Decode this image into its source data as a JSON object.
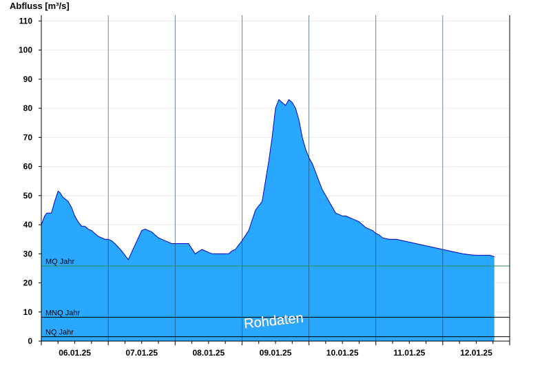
{
  "chart_data": {
    "type": "area",
    "ylabel": "Abfluss [m³/s]",
    "ylim": [
      0,
      112
    ],
    "yticks": [
      0,
      10,
      20,
      30,
      40,
      50,
      60,
      70,
      80,
      90,
      100,
      110
    ],
    "day_labels": [
      "06.01.25",
      "07.01.25",
      "08.01.25",
      "09.01.25",
      "10.01.25",
      "11.01.25",
      "12.01.25"
    ],
    "watermark": "Rohdaten",
    "colors": {
      "fill": "#2aa8ff",
      "line": "#0000cc",
      "mq_line": "#2e8b57",
      "ref_line": "#000000"
    },
    "reference_lines": [
      {
        "label": "MQ Jahr",
        "value": 25.8
      },
      {
        "label": "MNQ Jahr",
        "value": 8.2
      },
      {
        "label": "NQ Jahr",
        "value": 1.5
      }
    ],
    "series": [
      {
        "x": [
          0,
          0.05,
          0.08,
          0.15,
          0.2,
          0.25,
          0.28,
          0.32,
          0.35,
          0.4,
          0.45,
          0.5,
          0.55,
          0.6,
          0.65,
          0.7,
          0.75,
          0.8,
          0.85,
          0.9,
          0.95,
          1.0,
          1.05,
          1.1,
          1.2,
          1.3,
          1.4,
          1.5,
          1.55,
          1.6,
          1.65,
          1.7,
          1.75,
          1.8,
          1.85,
          1.9,
          1.95,
          2.0,
          2.1,
          2.2,
          2.3,
          2.4,
          2.5,
          2.55,
          2.6,
          2.65,
          2.7,
          2.75,
          2.8,
          2.85,
          2.9,
          2.95,
          3.0,
          3.1,
          3.2,
          3.3,
          3.35,
          3.4,
          3.45,
          3.5,
          3.55,
          3.6,
          3.65,
          3.7,
          3.75,
          3.8,
          3.85,
          3.9,
          3.95,
          4.0,
          4.05,
          4.1,
          4.15,
          4.2,
          4.25,
          4.3,
          4.35,
          4.4,
          4.45,
          4.5,
          4.55,
          4.6,
          4.65,
          4.7,
          4.75,
          4.8,
          4.85,
          4.9,
          4.95,
          5.0,
          5.05,
          5.1,
          5.2,
          5.3,
          5.4,
          5.5,
          5.6,
          5.7,
          5.8,
          5.9,
          6.0,
          6.1,
          6.2,
          6.3,
          6.4,
          6.5,
          6.6,
          6.7,
          6.77
        ],
        "values": [
          40,
          43,
          44,
          44,
          48,
          51.5,
          51,
          49.5,
          49,
          48,
          46,
          43,
          41,
          39.5,
          39.5,
          38.5,
          38,
          37,
          36,
          35.5,
          35,
          35,
          34.5,
          33.5,
          31,
          28,
          33,
          38,
          38.5,
          38,
          37.5,
          36.5,
          35.5,
          35,
          34.5,
          34,
          33.5,
          33.5,
          33.5,
          33.5,
          30,
          31.5,
          30.5,
          30,
          30,
          30,
          30,
          30,
          30,
          31,
          31.5,
          33,
          34.5,
          38,
          45,
          48,
          55,
          62,
          70,
          80,
          83,
          82,
          81,
          83,
          82,
          80,
          76,
          70,
          66,
          63,
          61,
          58,
          55,
          52,
          50,
          48,
          46,
          44,
          43.5,
          43,
          43,
          42.5,
          42,
          41.5,
          41,
          40,
          39,
          38.5,
          38,
          37,
          36.5,
          35.5,
          35,
          35,
          34.5,
          34,
          33.5,
          33,
          32.5,
          32,
          31.5,
          31,
          30.5,
          30,
          29.7,
          29.5,
          29.5,
          29.5,
          29
        ]
      }
    ]
  }
}
